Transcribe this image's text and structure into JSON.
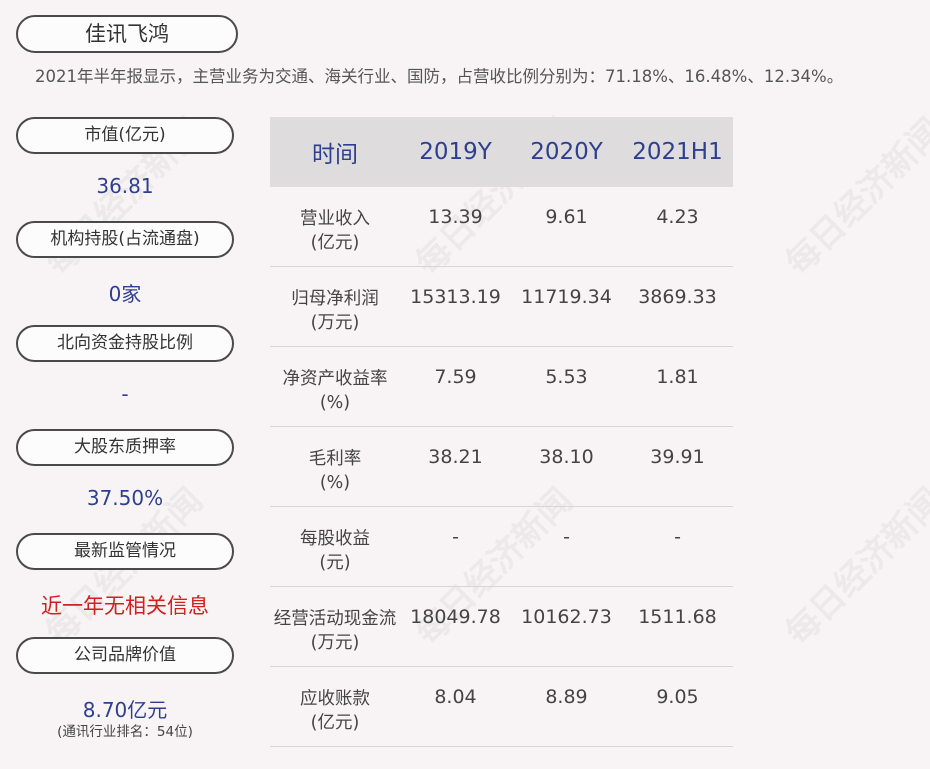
{
  "company_name": "佳讯飞鸿",
  "summary": "2021年半年报显示，主营业务为交通、海关行业、国防，占营收比例分别为：71.18%、16.48%、12.34%。",
  "watermark": "每日经济新闻",
  "sidebar": [
    {
      "label": "市值(亿元)",
      "value": "36.81"
    },
    {
      "label": "机构持股(占流通盘)",
      "value": "0家"
    },
    {
      "label": "北向资金持股比例",
      "value": "-"
    },
    {
      "label": "大股东质押率",
      "value": "37.50%"
    },
    {
      "label": "最新监管情况",
      "value": "近一年无相关信息"
    },
    {
      "label": "公司品牌价值",
      "value": "8.70亿元",
      "note": "(通讯行业排名：54位)"
    }
  ],
  "table": {
    "headers": [
      "时间",
      "2019Y",
      "2020Y",
      "2021H1"
    ],
    "rows": [
      {
        "label": "营业收入",
        "unit": "(亿元)",
        "values": [
          "13.39",
          "9.61",
          "4.23"
        ]
      },
      {
        "label": "归母净利润",
        "unit": "(万元)",
        "values": [
          "15313.19",
          "11719.34",
          "3869.33"
        ]
      },
      {
        "label": "净资产收益率",
        "unit": "(%)",
        "values": [
          "7.59",
          "5.53",
          "1.81"
        ]
      },
      {
        "label": "毛利率",
        "unit": "(%)",
        "values": [
          "38.21",
          "38.10",
          "39.91"
        ]
      },
      {
        "label": "每股收益",
        "unit": "(元)",
        "values": [
          "-",
          "-",
          "-"
        ]
      },
      {
        "label": "经营活动现金流",
        "unit": "(万元)",
        "values": [
          "18049.78",
          "10162.73",
          "1511.68"
        ]
      },
      {
        "label": "应收账款",
        "unit": "(亿元)",
        "values": [
          "8.04",
          "8.89",
          "9.05"
        ]
      }
    ]
  },
  "colors": {
    "accent": "#2f3f8f",
    "alert": "#d0201f",
    "header_bg": "#dedcdd",
    "background": "#f8f4f6"
  }
}
